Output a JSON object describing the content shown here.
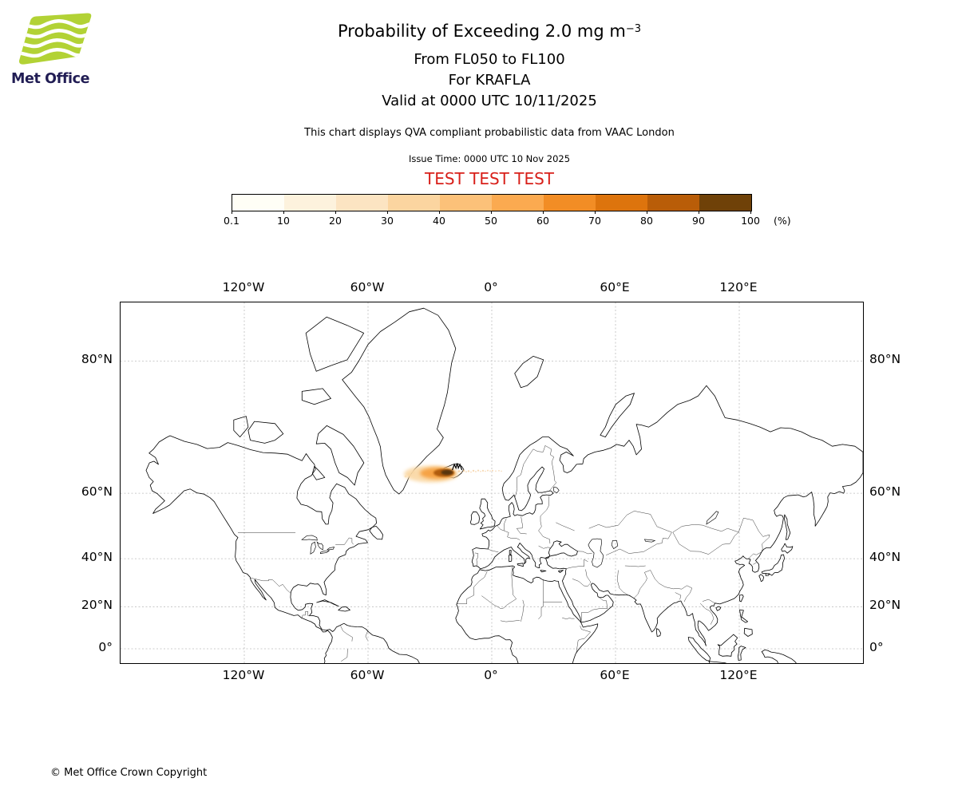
{
  "page": {
    "background": "#ffffff",
    "copyright": "© Met Office Crown Copyright"
  },
  "logo": {
    "brand": "Met Office",
    "green": "#b2d235",
    "navy": "#211d54"
  },
  "header": {
    "title_prefix": "Probability of Exceeding 2.0 mg m",
    "title_exponent": "−3",
    "flight_levels": "From FL050 to FL100",
    "volcano_line": "For KRAFLA",
    "valid_line": "Valid at 0000 UTC 10/11/2025",
    "description": "This chart displays QVA compliant probabilistic data from VAAC London",
    "issue_time": "Issue Time: 0000 UTC 10 Nov 2025",
    "test_banner": "TEST TEST TEST",
    "test_color": "#d8201a"
  },
  "colorbar": {
    "tick_labels": [
      "0.1",
      "10",
      "20",
      "30",
      "40",
      "50",
      "60",
      "70",
      "80",
      "90",
      "100"
    ],
    "unit": "(%)",
    "segment_colors": [
      "#fffef6",
      "#fdf2dd",
      "#fce4c2",
      "#fbd5a0",
      "#fcc179",
      "#fbaa50",
      "#f28d25",
      "#dd740d",
      "#b95d08",
      "#6f4108"
    ]
  },
  "map": {
    "lon_tick_labels": [
      "120°W",
      "60°W",
      "0°",
      "60°E",
      "120°E"
    ],
    "lat_tick_labels": [
      "80°N",
      "60°N",
      "40°N",
      "20°N",
      "0°"
    ],
    "grid_color": "#bdbdbd",
    "plume_colors": {
      "halo": "#fad7a2",
      "mid": "#f6a041",
      "dark": "#b05c08",
      "core": "#59350a",
      "trail": "#f0b469"
    }
  }
}
